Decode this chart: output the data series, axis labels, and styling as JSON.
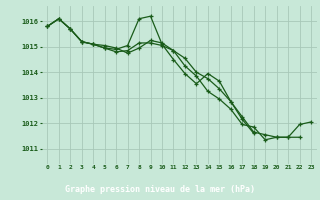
{
  "title": "Graphe pression niveau de la mer (hPa)",
  "background_color": "#c8e8d8",
  "plot_bg_color": "#c8e8d8",
  "xlabel_bg": "#2a6e2a",
  "grid_color": "#a8c8b8",
  "line_color": "#1a5c1a",
  "x_labels": [
    "0",
    "1",
    "2",
    "3",
    "4",
    "5",
    "6",
    "7",
    "8",
    "9",
    "10",
    "11",
    "12",
    "13",
    "14",
    "15",
    "16",
    "17",
    "18",
    "19",
    "20",
    "21",
    "22",
    "23"
  ],
  "ylim": [
    1010.4,
    1016.6
  ],
  "yticks": [
    1011,
    1012,
    1013,
    1014,
    1015,
    1016
  ],
  "series": [
    [
      1015.8,
      1016.1,
      1015.7,
      1015.2,
      1015.1,
      1014.95,
      1014.9,
      1015.05,
      1016.1,
      1016.2,
      1015.1,
      1014.5,
      1013.95,
      1013.55,
      1013.95,
      1013.65,
      1012.85,
      1012.15,
      1011.6,
      null,
      null,
      null,
      null,
      null
    ],
    [
      1015.8,
      1016.1,
      1015.7,
      1015.2,
      1015.1,
      1014.95,
      1014.8,
      1014.85,
      1015.15,
      1015.15,
      1015.05,
      1014.85,
      1014.55,
      1014.0,
      1013.75,
      1013.35,
      1012.85,
      1012.25,
      1011.65,
      1011.55,
      1011.45,
      1011.45,
      1011.95,
      1012.05
    ],
    [
      1015.8,
      1016.1,
      1015.7,
      1015.2,
      1015.1,
      1015.05,
      1014.95,
      1014.75,
      1014.95,
      1015.25,
      1015.15,
      1014.85,
      1014.25,
      1013.85,
      1013.25,
      1012.95,
      1012.55,
      1011.95,
      1011.85,
      1011.35,
      1011.45,
      1011.45,
      1011.45,
      null
    ]
  ]
}
